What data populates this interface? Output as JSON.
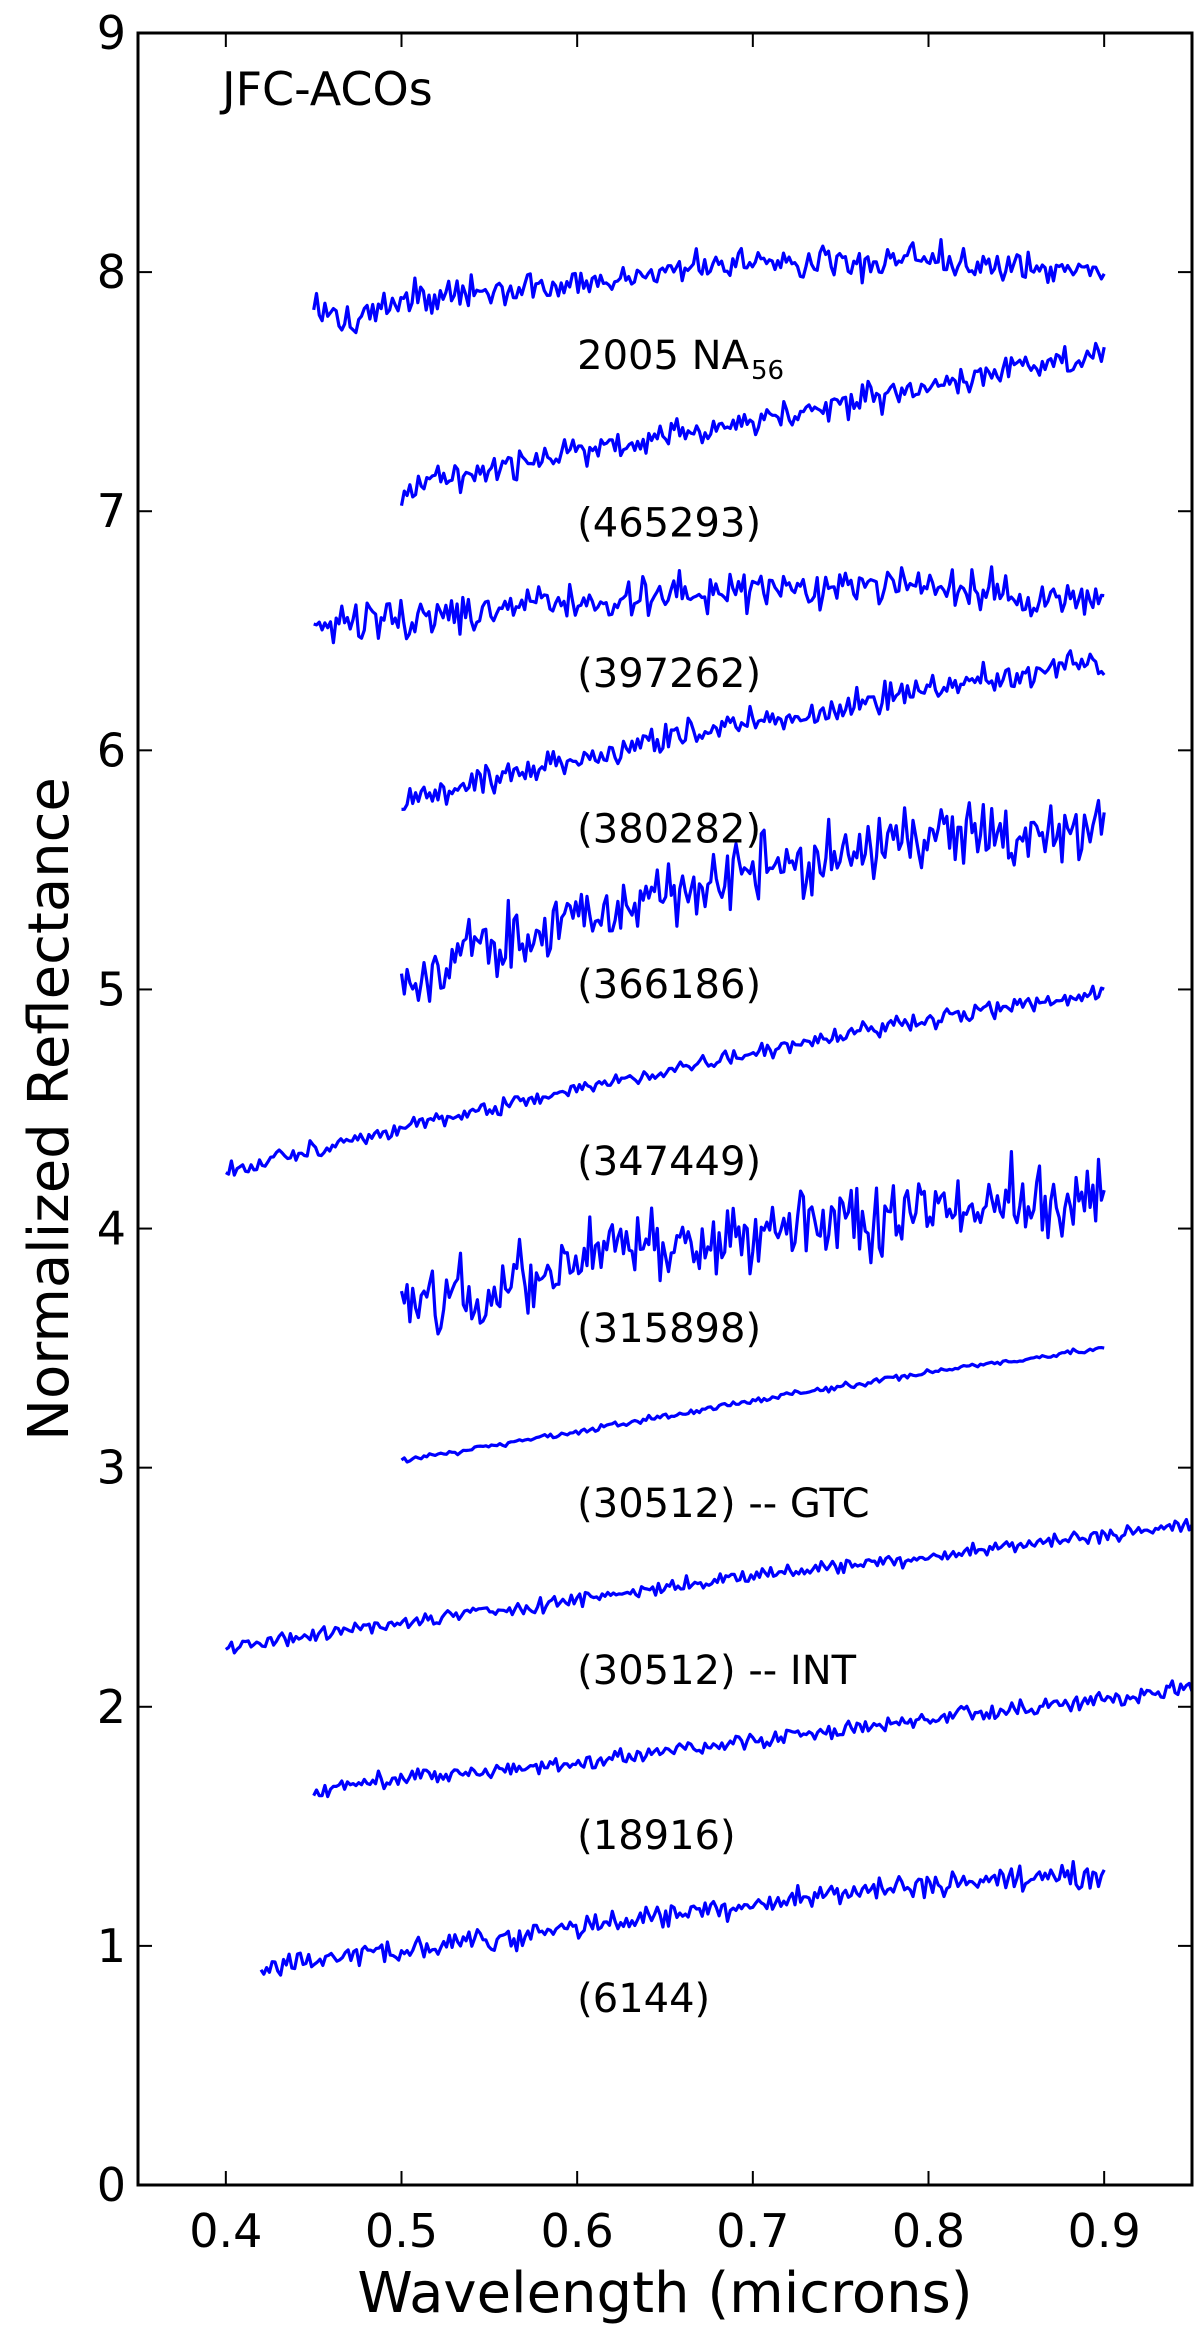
{
  "chart_data": {
    "type": "line",
    "title": "JFC-ACOs",
    "xlabel": "Wavelength (microns)",
    "ylabel": "Normalized Reflectance",
    "xlim": [
      0.35,
      0.95
    ],
    "ylim": [
      0,
      9
    ],
    "xticks": [
      "0.4",
      "0.5",
      "0.6",
      "0.7",
      "0.8",
      "0.9"
    ],
    "yticks": [
      "0",
      "1",
      "2",
      "3",
      "4",
      "5",
      "6",
      "7",
      "8",
      "9"
    ],
    "grid": false,
    "line_color": "#0000ff",
    "series": [
      {
        "name": "2005 NA",
        "name_subscript": "56",
        "x_range": [
          0.45,
          0.9
        ],
        "anchors": [
          [
            0.45,
            7.85
          ],
          [
            0.47,
            7.78
          ],
          [
            0.5,
            7.88
          ],
          [
            0.6,
            7.95
          ],
          [
            0.7,
            8.03
          ],
          [
            0.8,
            8.05
          ],
          [
            0.9,
            8.0
          ]
        ],
        "noise": 0.07
      },
      {
        "name": "(465293)",
        "x_range": [
          0.5,
          0.9
        ],
        "anchors": [
          [
            0.5,
            7.1
          ],
          [
            0.6,
            7.25
          ],
          [
            0.7,
            7.38
          ],
          [
            0.8,
            7.52
          ],
          [
            0.9,
            7.65
          ]
        ],
        "noise": 0.06
      },
      {
        "name": "(397262)",
        "x_range": [
          0.45,
          0.9
        ],
        "anchors": [
          [
            0.45,
            6.52
          ],
          [
            0.5,
            6.55
          ],
          [
            0.6,
            6.62
          ],
          [
            0.7,
            6.68
          ],
          [
            0.8,
            6.68
          ],
          [
            0.9,
            6.62
          ]
        ],
        "noise": 0.08
      },
      {
        "name": "(380282)",
        "x_range": [
          0.5,
          0.9
        ],
        "anchors": [
          [
            0.5,
            5.77
          ],
          [
            0.6,
            5.97
          ],
          [
            0.7,
            6.12
          ],
          [
            0.8,
            6.25
          ],
          [
            0.9,
            6.38
          ]
        ],
        "noise": 0.06
      },
      {
        "name": "(366186)",
        "x_range": [
          0.5,
          0.9
        ],
        "anchors": [
          [
            0.5,
            5.02
          ],
          [
            0.6,
            5.32
          ],
          [
            0.7,
            5.48
          ],
          [
            0.8,
            5.62
          ],
          [
            0.9,
            5.65
          ]
        ],
        "noise": 0.14
      },
      {
        "name": "(347449)",
        "x_range": [
          0.4,
          0.9
        ],
        "anchors": [
          [
            0.4,
            4.24
          ],
          [
            0.5,
            4.42
          ],
          [
            0.6,
            4.58
          ],
          [
            0.7,
            4.74
          ],
          [
            0.8,
            4.88
          ],
          [
            0.9,
            4.98
          ]
        ],
        "noise": 0.035
      },
      {
        "name": "(315898)",
        "x_range": [
          0.5,
          0.9
        ],
        "anchors": [
          [
            0.5,
            3.65
          ],
          [
            0.6,
            3.88
          ],
          [
            0.7,
            3.98
          ],
          [
            0.8,
            4.08
          ],
          [
            0.9,
            4.15
          ]
        ],
        "noise": 0.16
      },
      {
        "name": "(30512) -- GTC",
        "x_range": [
          0.5,
          0.9
        ],
        "anchors": [
          [
            0.5,
            3.03
          ],
          [
            0.6,
            3.15
          ],
          [
            0.7,
            3.28
          ],
          [
            0.8,
            3.4
          ],
          [
            0.9,
            3.5
          ]
        ],
        "noise": 0.012
      },
      {
        "name": "(30512) -- INT",
        "x_range": [
          0.4,
          0.95
        ],
        "anchors": [
          [
            0.4,
            2.25
          ],
          [
            0.5,
            2.35
          ],
          [
            0.6,
            2.45
          ],
          [
            0.7,
            2.55
          ],
          [
            0.8,
            2.63
          ],
          [
            0.9,
            2.72
          ],
          [
            0.95,
            2.76
          ]
        ],
        "noise": 0.03
      },
      {
        "name": "(18916)",
        "x_range": [
          0.45,
          0.95
        ],
        "anchors": [
          [
            0.45,
            1.65
          ],
          [
            0.5,
            1.7
          ],
          [
            0.6,
            1.76
          ],
          [
            0.7,
            1.86
          ],
          [
            0.8,
            1.95
          ],
          [
            0.9,
            2.03
          ],
          [
            0.95,
            2.08
          ]
        ],
        "noise": 0.035
      },
      {
        "name": "(6144)",
        "x_range": [
          0.42,
          0.9
        ],
        "anchors": [
          [
            0.42,
            0.9
          ],
          [
            0.5,
            0.98
          ],
          [
            0.6,
            1.08
          ],
          [
            0.7,
            1.18
          ],
          [
            0.8,
            1.26
          ],
          [
            0.9,
            1.3
          ]
        ],
        "noise": 0.05
      }
    ]
  }
}
